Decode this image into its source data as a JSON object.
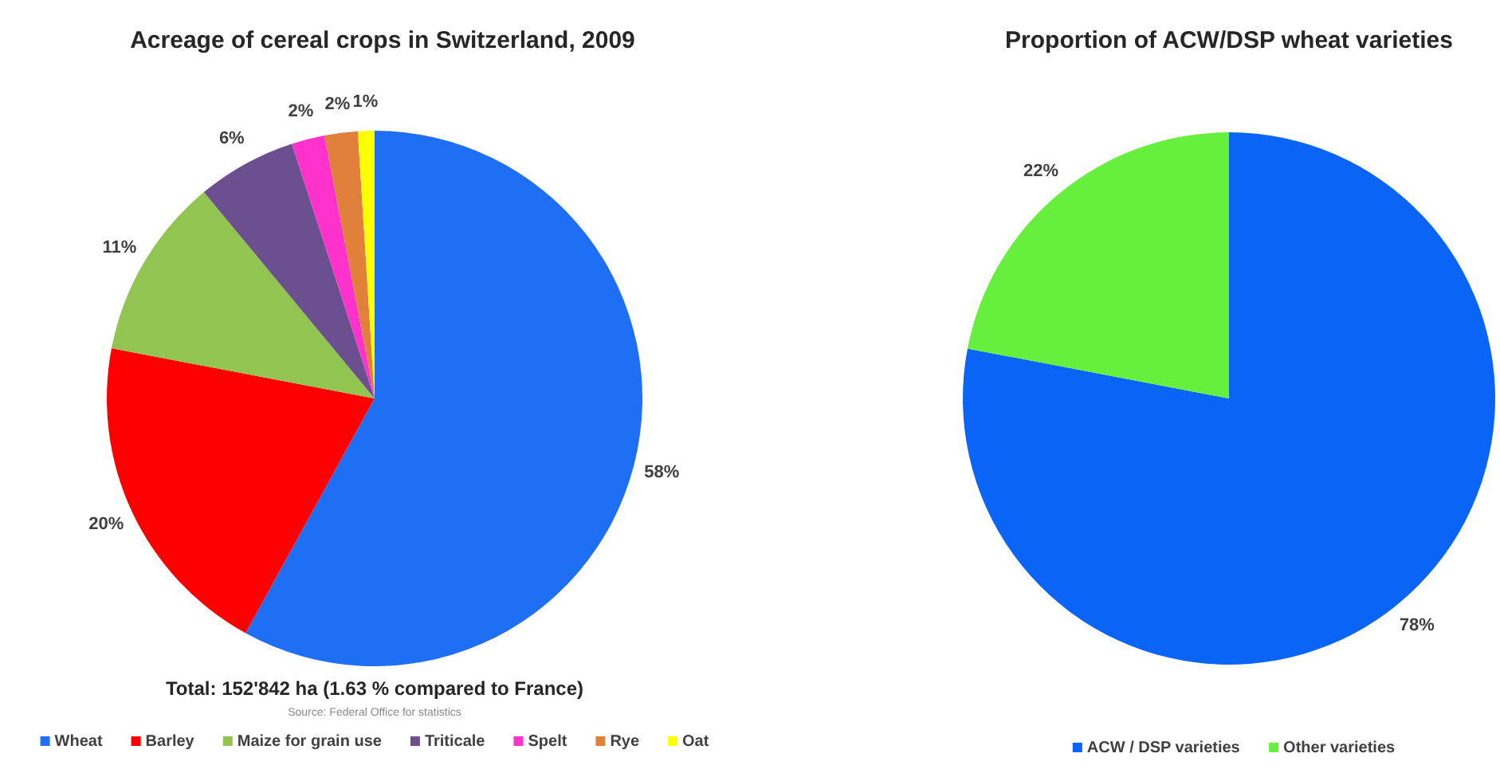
{
  "chart_data": [
    {
      "type": "pie",
      "title": "Acreage of cereal crops in Switzerland, 2009",
      "categories": [
        "Wheat",
        "Barley",
        "Maize for grain use",
        "Triticale",
        "Spelt",
        "Rye",
        "Oat"
      ],
      "values": [
        58,
        20,
        11,
        6,
        2,
        2,
        1
      ],
      "value_labels": [
        "58%",
        "20%",
        "11%",
        "6%",
        "2%",
        "2%",
        "1%"
      ],
      "colors": [
        "#1f6ff5",
        "#ff0000",
        "#92c451",
        "#6b4f8f",
        "#ff33cc",
        "#e0803a",
        "#ffff00"
      ],
      "legend": "bottom",
      "annotations": [
        "Total: 152'842 ha (1.63 % compared to France)",
        "Source: Federal Office for statistics"
      ]
    },
    {
      "type": "pie",
      "title": "Proportion of ACW/DSP wheat varieties",
      "categories": [
        "ACW / DSP varieties",
        "Other varieties"
      ],
      "values": [
        78,
        22
      ],
      "value_labels": [
        "78%",
        "22%"
      ],
      "colors": [
        "#0a64f5",
        "#66ef3c"
      ],
      "legend": "bottom"
    }
  ]
}
